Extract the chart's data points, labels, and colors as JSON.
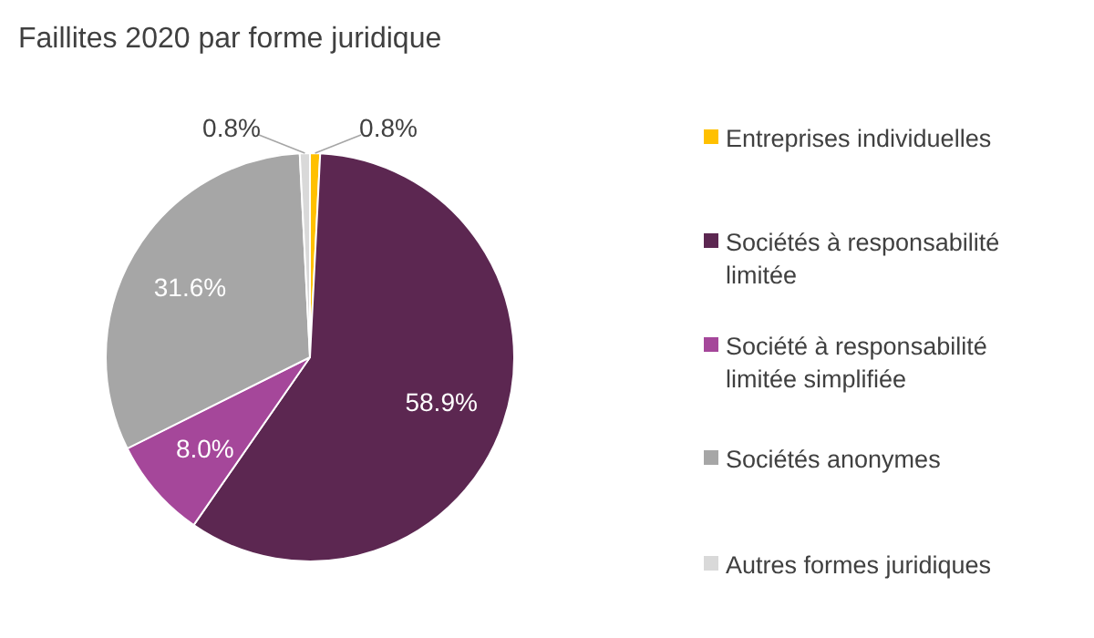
{
  "chart_data": {
    "type": "pie",
    "title": "Faillites 2020 par forme juridique",
    "categories": [
      "Entreprises individuelles",
      "Sociétés à responsabilité limitée",
      "Société à responsabilité limitée simplifiée",
      "Sociétés anonymes",
      "Autres formes juridiques"
    ],
    "values": [
      0.8,
      58.9,
      8.0,
      31.6,
      0.8
    ],
    "colors": [
      "#ffc000",
      "#5c2751",
      "#a5479a",
      "#a6a6a6",
      "#d9d9d9"
    ],
    "value_labels": [
      "0.8%",
      "58.9%",
      "8.0%",
      "31.6%",
      "0.8%"
    ],
    "legend": "right"
  }
}
